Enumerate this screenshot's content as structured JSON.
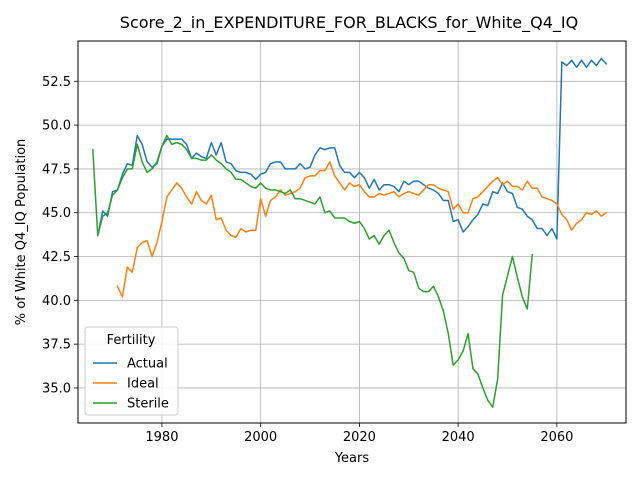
{
  "chart_data": {
    "type": "line",
    "title": "Score_2_in_EXPENDITURE_FOR_BLACKS_for_White_Q4_IQ",
    "xlabel": "Years",
    "ylabel": "% of White Q4_IQ Population",
    "xlim": [
      1963,
      2074
    ],
    "ylim": [
      33.0,
      54.8
    ],
    "xticks": [
      1980,
      2000,
      2020,
      2040,
      2060
    ],
    "yticks": [
      35.0,
      37.5,
      40.0,
      42.5,
      45.0,
      47.5,
      50.0,
      52.5
    ],
    "ytick_labels": [
      "35.0",
      "37.5",
      "40.0",
      "42.5",
      "45.0",
      "47.5",
      "50.0",
      "52.5"
    ],
    "grid": true,
    "legend": {
      "title": "Fertility",
      "location": "lower left"
    },
    "series": [
      {
        "name": "Actual",
        "color": "#1f77b4",
        "points": [
          [
            1967,
            43.7
          ],
          [
            1968,
            45.1
          ],
          [
            1969,
            44.8
          ],
          [
            1970,
            46.2
          ],
          [
            1971,
            46.3
          ],
          [
            1972,
            47.2
          ],
          [
            1973,
            47.8
          ],
          [
            1974,
            47.7
          ],
          [
            1975,
            49.4
          ],
          [
            1976,
            48.9
          ],
          [
            1977,
            47.9
          ],
          [
            1978,
            47.6
          ],
          [
            1979,
            47.8
          ],
          [
            1980,
            48.8
          ],
          [
            1981,
            49.2
          ],
          [
            1982,
            49.2
          ],
          [
            1983,
            49.2
          ],
          [
            1984,
            49.2
          ],
          [
            1985,
            48.9
          ],
          [
            1986,
            48.1
          ],
          [
            1987,
            48.4
          ],
          [
            1988,
            48.2
          ],
          [
            1989,
            48.1
          ],
          [
            1990,
            49.0
          ],
          [
            1991,
            48.3
          ],
          [
            1992,
            49.0
          ],
          [
            1993,
            47.9
          ],
          [
            1994,
            47.8
          ],
          [
            1995,
            47.4
          ],
          [
            1996,
            47.3
          ],
          [
            1997,
            47.3
          ],
          [
            1998,
            47.2
          ],
          [
            1999,
            46.9
          ],
          [
            2000,
            47.2
          ],
          [
            2001,
            47.3
          ],
          [
            2002,
            47.8
          ],
          [
            2003,
            47.9
          ],
          [
            2004,
            47.9
          ],
          [
            2005,
            47.5
          ],
          [
            2006,
            47.5
          ],
          [
            2007,
            47.5
          ],
          [
            2008,
            47.8
          ],
          [
            2009,
            47.5
          ],
          [
            2010,
            47.6
          ],
          [
            2011,
            48.3
          ],
          [
            2012,
            48.7
          ],
          [
            2013,
            48.6
          ],
          [
            2014,
            48.7
          ],
          [
            2015,
            48.7
          ],
          [
            2016,
            47.7
          ],
          [
            2017,
            47.3
          ],
          [
            2018,
            47.3
          ],
          [
            2019,
            47.0
          ],
          [
            2020,
            47.3
          ],
          [
            2021,
            47.0
          ],
          [
            2022,
            46.4
          ],
          [
            2023,
            46.9
          ],
          [
            2024,
            46.3
          ],
          [
            2025,
            46.6
          ],
          [
            2026,
            46.6
          ],
          [
            2027,
            46.5
          ],
          [
            2028,
            46.2
          ],
          [
            2029,
            46.8
          ],
          [
            2030,
            46.6
          ],
          [
            2031,
            46.8
          ],
          [
            2032,
            46.8
          ],
          [
            2033,
            46.6
          ],
          [
            2034,
            46.4
          ],
          [
            2035,
            46.3
          ],
          [
            2036,
            46.1
          ],
          [
            2037,
            45.7
          ],
          [
            2038,
            45.7
          ],
          [
            2039,
            44.5
          ],
          [
            2040,
            44.6
          ],
          [
            2041,
            43.9
          ],
          [
            2042,
            44.2
          ],
          [
            2043,
            44.6
          ],
          [
            2044,
            44.9
          ],
          [
            2045,
            45.5
          ],
          [
            2046,
            45.4
          ],
          [
            2047,
            46.2
          ],
          [
            2048,
            46.1
          ],
          [
            2049,
            46.7
          ],
          [
            2050,
            46.2
          ],
          [
            2051,
            46.1
          ],
          [
            2052,
            45.3
          ],
          [
            2053,
            45.2
          ],
          [
            2054,
            44.8
          ],
          [
            2055,
            44.6
          ],
          [
            2056,
            44.1
          ],
          [
            2057,
            44.1
          ],
          [
            2058,
            43.7
          ],
          [
            2059,
            44.1
          ],
          [
            2060,
            43.5
          ],
          [
            2061,
            53.6
          ],
          [
            2062,
            53.4
          ],
          [
            2063,
            53.7
          ],
          [
            2064,
            53.3
          ],
          [
            2065,
            53.7
          ],
          [
            2066,
            53.3
          ],
          [
            2067,
            53.7
          ],
          [
            2068,
            53.4
          ],
          [
            2069,
            53.8
          ],
          [
            2070,
            53.5
          ]
        ]
      },
      {
        "name": "Ideal",
        "color": "#ff7f0e",
        "points": [
          [
            1971,
            40.8
          ],
          [
            1972,
            40.2
          ],
          [
            1973,
            41.9
          ],
          [
            1974,
            41.6
          ],
          [
            1975,
            43.0
          ],
          [
            1976,
            43.3
          ],
          [
            1977,
            43.4
          ],
          [
            1978,
            42.5
          ],
          [
            1979,
            43.3
          ],
          [
            1980,
            44.5
          ],
          [
            1981,
            45.9
          ],
          [
            1982,
            46.3
          ],
          [
            1983,
            46.7
          ],
          [
            1984,
            46.4
          ],
          [
            1985,
            45.9
          ],
          [
            1986,
            45.5
          ],
          [
            1987,
            46.2
          ],
          [
            1988,
            45.7
          ],
          [
            1989,
            45.5
          ],
          [
            1990,
            46.0
          ],
          [
            1991,
            44.6
          ],
          [
            1992,
            44.7
          ],
          [
            1993,
            44.0
          ],
          [
            1994,
            43.7
          ],
          [
            1995,
            43.6
          ],
          [
            1996,
            44.1
          ],
          [
            1997,
            43.9
          ],
          [
            1998,
            44.0
          ],
          [
            1999,
            44.0
          ],
          [
            2000,
            45.8
          ],
          [
            2001,
            44.8
          ],
          [
            2002,
            45.7
          ],
          [
            2003,
            45.9
          ],
          [
            2004,
            46.3
          ],
          [
            2005,
            46.0
          ],
          [
            2006,
            46.1
          ],
          [
            2007,
            46.2
          ],
          [
            2008,
            46.4
          ],
          [
            2009,
            47.0
          ],
          [
            2010,
            47.1
          ],
          [
            2011,
            47.1
          ],
          [
            2012,
            47.4
          ],
          [
            2013,
            47.4
          ],
          [
            2014,
            47.9
          ],
          [
            2015,
            47.1
          ],
          [
            2016,
            46.7
          ],
          [
            2017,
            46.3
          ],
          [
            2018,
            46.7
          ],
          [
            2019,
            46.5
          ],
          [
            2020,
            46.6
          ],
          [
            2021,
            46.2
          ],
          [
            2022,
            45.9
          ],
          [
            2023,
            45.9
          ],
          [
            2024,
            46.1
          ],
          [
            2025,
            46.0
          ],
          [
            2026,
            46.1
          ],
          [
            2027,
            46.2
          ],
          [
            2028,
            45.9
          ],
          [
            2029,
            46.1
          ],
          [
            2030,
            46.2
          ],
          [
            2031,
            46.1
          ],
          [
            2032,
            46.0
          ],
          [
            2033,
            46.3
          ],
          [
            2034,
            46.6
          ],
          [
            2035,
            46.6
          ],
          [
            2036,
            46.4
          ],
          [
            2037,
            46.3
          ],
          [
            2038,
            46.2
          ],
          [
            2039,
            45.2
          ],
          [
            2040,
            45.5
          ],
          [
            2041,
            45.0
          ],
          [
            2042,
            45.0
          ],
          [
            2043,
            45.8
          ],
          [
            2044,
            45.9
          ],
          [
            2045,
            46.2
          ],
          [
            2046,
            46.5
          ],
          [
            2047,
            46.8
          ],
          [
            2048,
            47.0
          ],
          [
            2049,
            46.6
          ],
          [
            2050,
            46.8
          ],
          [
            2051,
            46.5
          ],
          [
            2052,
            46.5
          ],
          [
            2053,
            46.3
          ],
          [
            2054,
            46.8
          ],
          [
            2055,
            46.4
          ],
          [
            2056,
            46.4
          ],
          [
            2057,
            45.9
          ],
          [
            2058,
            45.8
          ],
          [
            2059,
            45.7
          ],
          [
            2060,
            45.5
          ],
          [
            2061,
            44.9
          ],
          [
            2062,
            44.6
          ],
          [
            2063,
            44.0
          ],
          [
            2064,
            44.4
          ],
          [
            2065,
            44.6
          ],
          [
            2066,
            45.0
          ],
          [
            2067,
            44.9
          ],
          [
            2068,
            45.1
          ],
          [
            2069,
            44.8
          ],
          [
            2070,
            45.0
          ]
        ]
      },
      {
        "name": "Sterile",
        "color": "#2ca02c",
        "points": [
          [
            1966,
            48.6
          ],
          [
            1967,
            43.7
          ],
          [
            1968,
            44.8
          ],
          [
            1969,
            45.0
          ],
          [
            1970,
            46.0
          ],
          [
            1971,
            46.3
          ],
          [
            1972,
            47.0
          ],
          [
            1973,
            47.5
          ],
          [
            1974,
            47.5
          ],
          [
            1975,
            48.9
          ],
          [
            1976,
            47.9
          ],
          [
            1977,
            47.3
          ],
          [
            1978,
            47.5
          ],
          [
            1979,
            47.9
          ],
          [
            1980,
            48.8
          ],
          [
            1981,
            49.4
          ],
          [
            1982,
            48.9
          ],
          [
            1983,
            49.0
          ],
          [
            1984,
            48.9
          ],
          [
            1985,
            48.6
          ],
          [
            1986,
            48.1
          ],
          [
            1987,
            48.1
          ],
          [
            1988,
            48.0
          ],
          [
            1989,
            48.0
          ],
          [
            1990,
            48.3
          ],
          [
            1991,
            48.0
          ],
          [
            1992,
            47.8
          ],
          [
            1993,
            47.5
          ],
          [
            1994,
            47.3
          ],
          [
            1995,
            46.9
          ],
          [
            1996,
            46.9
          ],
          [
            1997,
            46.7
          ],
          [
            1998,
            46.5
          ],
          [
            1999,
            46.4
          ],
          [
            2000,
            46.7
          ],
          [
            2001,
            46.4
          ],
          [
            2002,
            46.3
          ],
          [
            2003,
            46.3
          ],
          [
            2004,
            46.2
          ],
          [
            2005,
            46.1
          ],
          [
            2006,
            46.3
          ],
          [
            2007,
            45.8
          ],
          [
            2008,
            45.8
          ],
          [
            2009,
            45.7
          ],
          [
            2010,
            45.6
          ],
          [
            2011,
            45.5
          ],
          [
            2012,
            45.9
          ],
          [
            2013,
            45.0
          ],
          [
            2014,
            45.1
          ],
          [
            2015,
            44.7
          ],
          [
            2016,
            44.7
          ],
          [
            2017,
            44.7
          ],
          [
            2018,
            44.5
          ],
          [
            2019,
            44.4
          ],
          [
            2020,
            44.5
          ],
          [
            2021,
            44.1
          ],
          [
            2022,
            43.5
          ],
          [
            2023,
            43.7
          ],
          [
            2024,
            43.2
          ],
          [
            2025,
            43.7
          ],
          [
            2026,
            44.0
          ],
          [
            2027,
            43.3
          ],
          [
            2028,
            42.7
          ],
          [
            2029,
            42.4
          ],
          [
            2030,
            41.7
          ],
          [
            2031,
            41.6
          ],
          [
            2032,
            40.7
          ],
          [
            2033,
            40.5
          ],
          [
            2034,
            40.5
          ],
          [
            2035,
            40.8
          ],
          [
            2036,
            40.2
          ],
          [
            2037,
            39.4
          ],
          [
            2038,
            38.1
          ],
          [
            2039,
            36.3
          ],
          [
            2040,
            36.6
          ],
          [
            2041,
            37.1
          ],
          [
            2042,
            38.1
          ],
          [
            2043,
            36.1
          ],
          [
            2044,
            35.8
          ],
          [
            2045,
            35.0
          ],
          [
            2046,
            34.3
          ],
          [
            2047,
            33.9
          ],
          [
            2048,
            35.5
          ],
          [
            2049,
            40.3
          ],
          [
            2050,
            41.4
          ],
          [
            2051,
            42.5
          ],
          [
            2052,
            41.3
          ],
          [
            2053,
            40.2
          ],
          [
            2054,
            39.5
          ],
          [
            2055,
            42.6
          ]
        ]
      }
    ]
  }
}
